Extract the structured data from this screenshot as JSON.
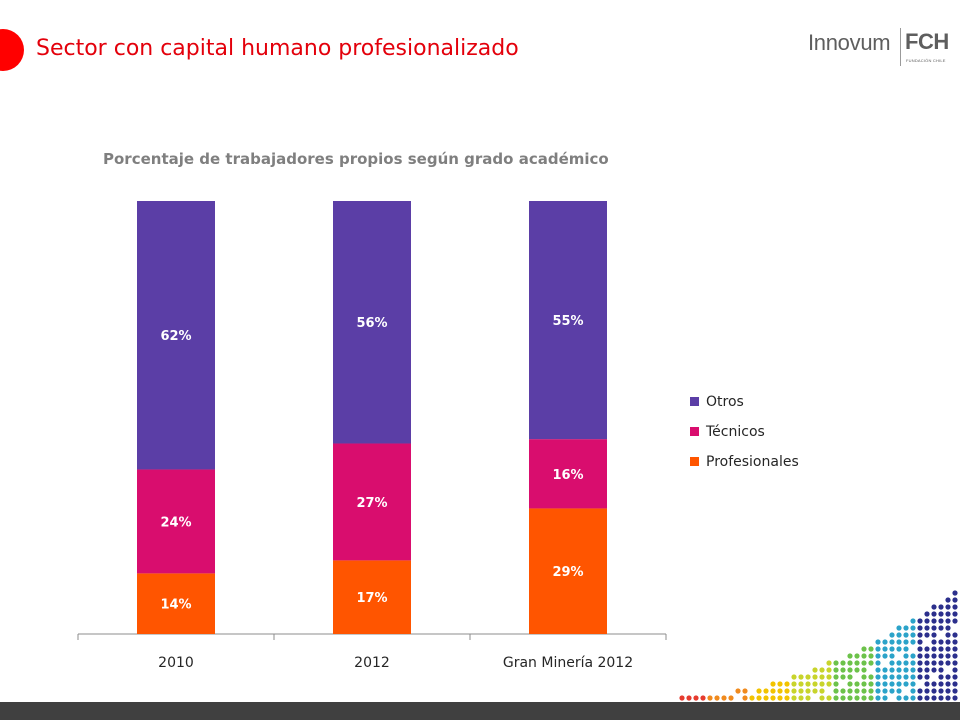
{
  "slide": {
    "title": "Sector con capital humano profesionalizado",
    "accent_color": "#ff0000",
    "title_color": "#e3000b",
    "bottom_bar_color": "#404040"
  },
  "logo": {
    "word": "Innovum",
    "brand": "FCH",
    "sub": "FUNDACIÓN CHILE"
  },
  "chart_data": {
    "type": "bar",
    "stacked": true,
    "title": "Porcentaje de trabajadores propios según grado académico",
    "categories": [
      "2010",
      "2012",
      "Gran Minería 2012"
    ],
    "series": [
      {
        "name": "Profesionales",
        "color": "#ff5500",
        "values": [
          14,
          17,
          29
        ]
      },
      {
        "name": "Técnicos",
        "color": "#d90d6e",
        "values": [
          24,
          27,
          16
        ]
      },
      {
        "name": "Otros",
        "color": "#5b3ea6",
        "values": [
          62,
          56,
          55
        ]
      }
    ],
    "ylim": [
      0,
      100
    ],
    "grid": false,
    "legend": "right",
    "data_labels": true,
    "label_suffix": "%"
  }
}
